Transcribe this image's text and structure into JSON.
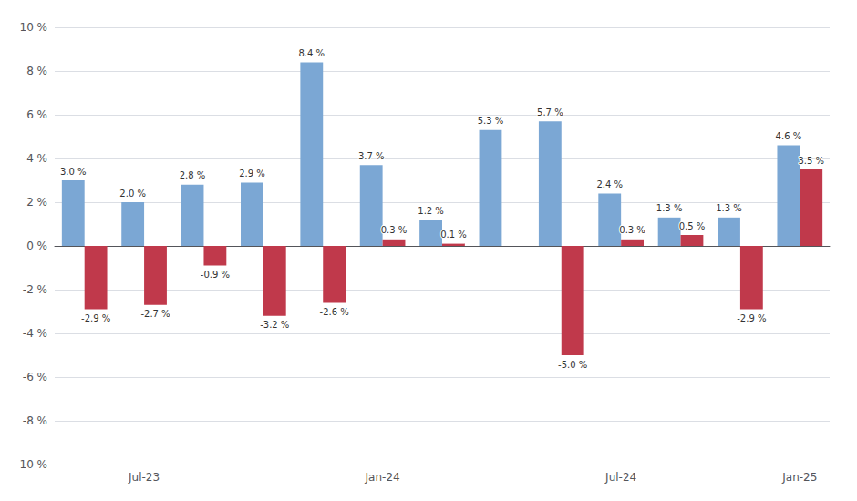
{
  "chart_data": {
    "type": "bar",
    "categories": [
      null,
      "Jul-23",
      null,
      null,
      null,
      "Jan-24",
      null,
      null,
      null,
      "Jul-24",
      null,
      null,
      "Jan-25"
    ],
    "series": [
      {
        "color": "#7ba7d4",
        "values": [
          3.0,
          2.0,
          2.8,
          2.9,
          8.4,
          3.7,
          1.2,
          5.3,
          5.7,
          2.4,
          1.3,
          1.3,
          4.6
        ],
        "value_labels": [
          "3.0 %",
          "2.0 %",
          "2.8 %",
          "2.9 %",
          "8.4 %",
          "3.7 %",
          "1.2 %",
          "5.3 %",
          "5.7 %",
          "2.4 %",
          "1.3 %",
          "1.3 %",
          "4.6 %"
        ]
      },
      {
        "color": "#c0394b",
        "values": [
          -2.9,
          -2.7,
          -0.9,
          -3.2,
          -2.6,
          0.3,
          0.1,
          0.0,
          -5.0,
          0.3,
          0.5,
          -2.9,
          3.5
        ],
        "value_labels": [
          "-2.9 %",
          "-2.7 %",
          "-0.9 %",
          "-3.2 %",
          "-2.6 %",
          "0.3 %",
          "0.1 %",
          null,
          "-5.0 %",
          "0.3 %",
          "0.5 %",
          "-2.9 %",
          "3.5 %"
        ]
      }
    ],
    "ylim": [
      -10,
      10
    ],
    "yticks": [
      {
        "value": -10,
        "label": "-10 %"
      },
      {
        "value": -8,
        "label": "-8 %"
      },
      {
        "value": -6,
        "label": "-6 %"
      },
      {
        "value": -4,
        "label": "-4 %"
      },
      {
        "value": -2,
        "label": "-2 %"
      },
      {
        "value": 0,
        "label": "0 %"
      },
      {
        "value": 2,
        "label": "2 %"
      },
      {
        "value": 4,
        "label": "4 %"
      },
      {
        "value": 6,
        "label": "6 %"
      },
      {
        "value": 8,
        "label": "8 %"
      },
      {
        "value": 10,
        "label": "10 %"
      }
    ],
    "grid": true,
    "data_labels": true
  }
}
